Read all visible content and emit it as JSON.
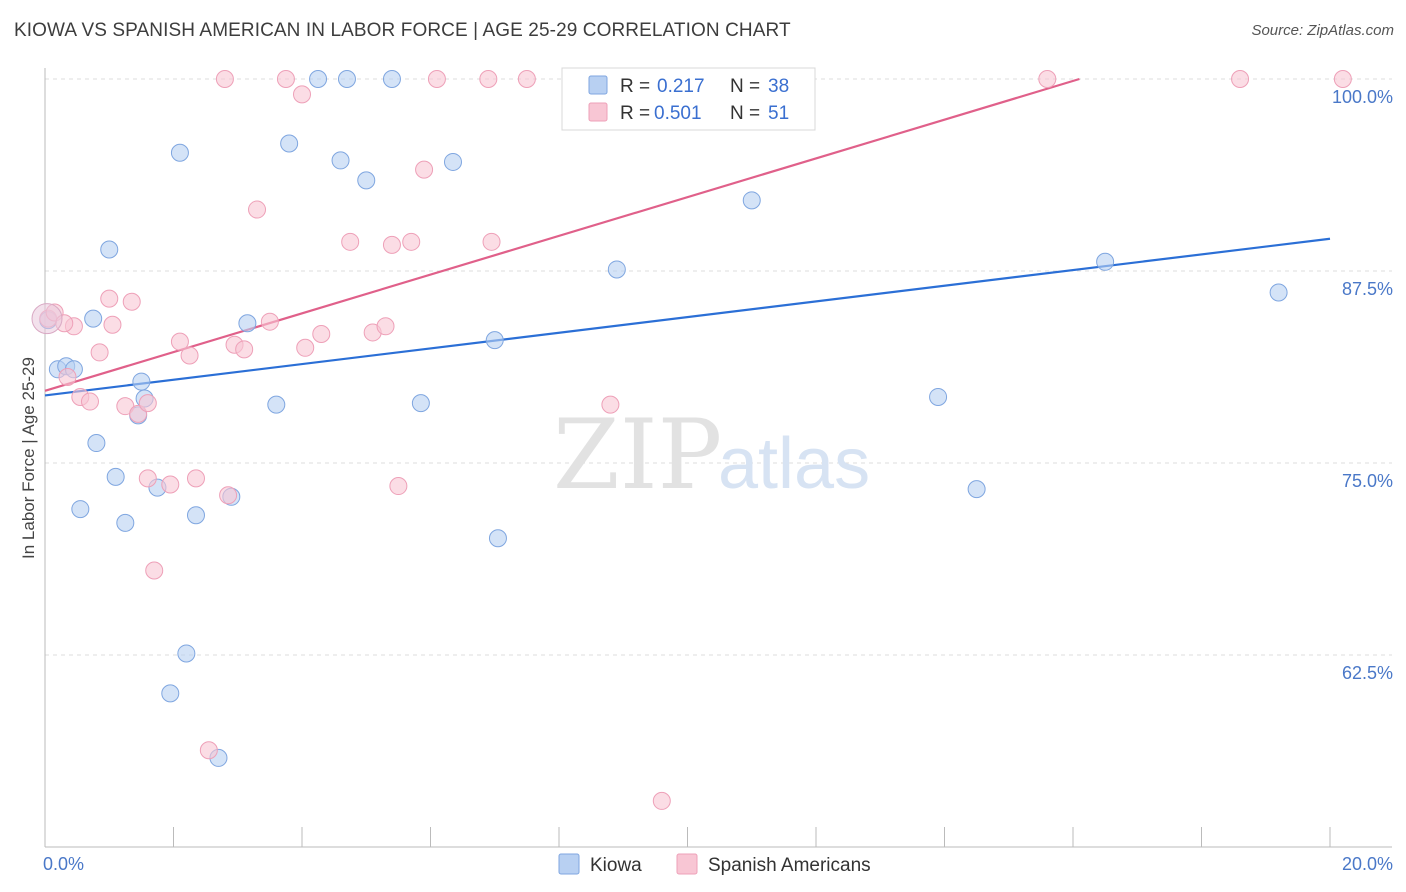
{
  "title": "KIOWA VS SPANISH AMERICAN IN LABOR FORCE | AGE 25-29 CORRELATION CHART",
  "source": "Source: ZipAtlas.com",
  "colors": {
    "kiowa_fill": "#b8d0f2",
    "kiowa_stroke": "#7fa6e0",
    "kiowa_line": "#2b6fd6",
    "spanish_fill": "#f8c6d4",
    "spanish_stroke": "#eea0b8",
    "spanish_line": "#e0608a",
    "tick_label": "#4a78c8",
    "grid": "#dddddd"
  },
  "legend": {
    "r_label": "R =",
    "n_label": "N =",
    "rows": [
      {
        "series": "kiowa",
        "r": "0.217",
        "n": "38"
      },
      {
        "series": "spanish",
        "r": "0.501",
        "n": "51"
      }
    ]
  },
  "bottom_legend": [
    {
      "series": "kiowa",
      "label": "Kiowa"
    },
    {
      "series": "spanish",
      "label": "Spanish Americans"
    }
  ],
  "watermark": {
    "zip": "ZIP",
    "atlas": "atlas"
  },
  "chart_data": {
    "type": "scatter",
    "title": "KIOWA VS SPANISH AMERICAN IN LABOR FORCE | AGE 25-29 CORRELATION CHART",
    "xlabel": "",
    "ylabel": "In Labor Force | Age 25-29",
    "xlim": [
      0,
      20
    ],
    "ylim": [
      50,
      100
    ],
    "x_tick_labels": [
      {
        "value": 0,
        "label": "0.0%"
      },
      {
        "value": 20,
        "label": "20.0%"
      }
    ],
    "y_tick_labels": [
      {
        "value": 100,
        "label": "100.0%"
      },
      {
        "value": 87.5,
        "label": "87.5%"
      },
      {
        "value": 75,
        "label": "75.0%"
      },
      {
        "value": 62.5,
        "label": "62.5%"
      }
    ],
    "series": [
      {
        "name": "Kiowa",
        "key": "kiowa",
        "r": 0.217,
        "n": 38,
        "trend": {
          "x": [
            0,
            20
          ],
          "y": [
            79.4,
            89.6
          ]
        },
        "points": [
          [
            0.05,
            84.3
          ],
          [
            0.2,
            81.1
          ],
          [
            0.33,
            81.3
          ],
          [
            0.45,
            81.1
          ],
          [
            0.55,
            72.0
          ],
          [
            0.75,
            84.4
          ],
          [
            0.8,
            76.3
          ],
          [
            1.0,
            88.9
          ],
          [
            1.1,
            74.1
          ],
          [
            1.25,
            71.1
          ],
          [
            1.45,
            78.1
          ],
          [
            1.5,
            80.3
          ],
          [
            1.55,
            79.2
          ],
          [
            1.75,
            73.4
          ],
          [
            1.95,
            60.0
          ],
          [
            2.1,
            95.2
          ],
          [
            2.2,
            62.6
          ],
          [
            2.35,
            71.6
          ],
          [
            2.7,
            55.8
          ],
          [
            2.9,
            72.8
          ],
          [
            3.15,
            84.1
          ],
          [
            3.6,
            78.8
          ],
          [
            3.8,
            95.8
          ],
          [
            4.25,
            100.0
          ],
          [
            4.6,
            94.7
          ],
          [
            4.7,
            100.0
          ],
          [
            5.0,
            93.4
          ],
          [
            5.4,
            100.0
          ],
          [
            5.85,
            78.9
          ],
          [
            6.35,
            94.6
          ],
          [
            7.05,
            70.1
          ],
          [
            7.0,
            83.0
          ],
          [
            8.9,
            87.6
          ],
          [
            11.0,
            92.1
          ],
          [
            13.9,
            79.3
          ],
          [
            14.5,
            73.3
          ],
          [
            16.5,
            88.1
          ],
          [
            19.2,
            86.1
          ]
        ]
      },
      {
        "name": "Spanish Americans",
        "key": "spanish",
        "r": 0.501,
        "n": 51,
        "trend": {
          "x": [
            0,
            16.1
          ],
          "y": [
            79.7,
            100.0
          ]
        },
        "points": [
          [
            0.05,
            84.4
          ],
          [
            0.15,
            84.8
          ],
          [
            0.35,
            80.6
          ],
          [
            0.45,
            83.9
          ],
          [
            0.55,
            79.3
          ],
          [
            0.7,
            79.0
          ],
          [
            0.85,
            82.2
          ],
          [
            1.0,
            85.7
          ],
          [
            1.05,
            84.0
          ],
          [
            1.25,
            78.7
          ],
          [
            1.35,
            85.5
          ],
          [
            1.45,
            78.2
          ],
          [
            1.6,
            78.9
          ],
          [
            1.6,
            74.0
          ],
          [
            1.7,
            68.0
          ],
          [
            1.95,
            73.6
          ],
          [
            2.1,
            82.9
          ],
          [
            2.25,
            82.0
          ],
          [
            2.35,
            74.0
          ],
          [
            2.55,
            56.3
          ],
          [
            2.8,
            100.0
          ],
          [
            2.85,
            72.9
          ],
          [
            2.95,
            82.7
          ],
          [
            3.1,
            82.4
          ],
          [
            3.3,
            91.5
          ],
          [
            3.5,
            84.2
          ],
          [
            3.75,
            100.0
          ],
          [
            4.0,
            99.0
          ],
          [
            4.05,
            82.5
          ],
          [
            4.3,
            83.4
          ],
          [
            4.75,
            89.4
          ],
          [
            5.1,
            83.5
          ],
          [
            5.3,
            83.9
          ],
          [
            5.4,
            89.2
          ],
          [
            5.5,
            73.5
          ],
          [
            5.7,
            89.4
          ],
          [
            5.9,
            94.1
          ],
          [
            6.1,
            100.0
          ],
          [
            6.95,
            89.4
          ],
          [
            7.5,
            100.0
          ],
          [
            8.8,
            78.8
          ],
          [
            9.35,
            100.0
          ],
          [
            9.6,
            53.0
          ],
          [
            10.4,
            100.0
          ],
          [
            11.2,
            100.0
          ],
          [
            15.6,
            100.0
          ],
          [
            18.6,
            100.0
          ],
          [
            20.2,
            100.0
          ],
          [
            8.5,
            100.0
          ],
          [
            6.9,
            100.0
          ],
          [
            0.3,
            84.1
          ]
        ]
      }
    ]
  }
}
